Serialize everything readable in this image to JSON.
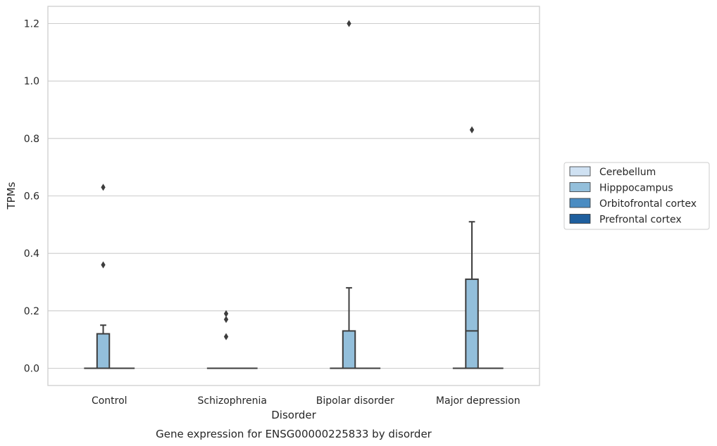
{
  "chart_data": {
    "type": "box",
    "title": "Gene expression for ENSG00000225833 by disorder",
    "xlabel": "Disorder",
    "ylabel": "TPMs",
    "ylim": [
      -0.06,
      1.26
    ],
    "yticks": [
      0.0,
      0.2,
      0.4,
      0.6,
      0.8,
      1.0,
      1.2
    ],
    "ytick_labels": [
      "0.0",
      "0.2",
      "0.4",
      "0.6",
      "0.8",
      "1.0",
      "1.2"
    ],
    "grid": true,
    "legend_position": "right",
    "categories": [
      "Control",
      "Schizophrenia",
      "Bipolar disorder",
      "Major depression"
    ],
    "series": [
      {
        "name": "Cerebellum",
        "color": "#cfe1f2",
        "boxes": [
          {
            "q1": 0,
            "median": 0,
            "q3": 0,
            "whisker_low": 0,
            "whisker_high": 0,
            "outliers": []
          },
          {
            "q1": 0,
            "median": 0,
            "q3": 0,
            "whisker_low": 0,
            "whisker_high": 0,
            "outliers": []
          },
          {
            "q1": 0,
            "median": 0,
            "q3": 0,
            "whisker_low": 0,
            "whisker_high": 0,
            "outliers": []
          },
          {
            "q1": 0,
            "median": 0,
            "q3": 0,
            "whisker_low": 0,
            "whisker_high": 0,
            "outliers": []
          }
        ]
      },
      {
        "name": "Hipppocampus",
        "color": "#93bfdb",
        "boxes": [
          {
            "q1": 0,
            "median": 0,
            "q3": 0.12,
            "whisker_low": 0,
            "whisker_high": 0.15,
            "outliers": [
              0.36,
              0.63
            ]
          },
          {
            "q1": 0,
            "median": 0,
            "q3": 0,
            "whisker_low": 0,
            "whisker_high": 0,
            "outliers": [
              0.11,
              0.17,
              0.19
            ]
          },
          {
            "q1": 0,
            "median": 0,
            "q3": 0.13,
            "whisker_low": 0,
            "whisker_high": 0.28,
            "outliers": [
              1.2
            ]
          },
          {
            "q1": 0,
            "median": 0.13,
            "q3": 0.31,
            "whisker_low": 0,
            "whisker_high": 0.51,
            "outliers": [
              0.83
            ]
          }
        ]
      },
      {
        "name": "Orbitofrontal cortex",
        "color": "#4a8cc2",
        "boxes": [
          {
            "q1": 0,
            "median": 0,
            "q3": 0,
            "whisker_low": 0,
            "whisker_high": 0,
            "outliers": []
          },
          {
            "q1": 0,
            "median": 0,
            "q3": 0,
            "whisker_low": 0,
            "whisker_high": 0,
            "outliers": []
          },
          {
            "q1": 0,
            "median": 0,
            "q3": 0,
            "whisker_low": 0,
            "whisker_high": 0,
            "outliers": []
          },
          {
            "q1": 0,
            "median": 0,
            "q3": 0,
            "whisker_low": 0,
            "whisker_high": 0,
            "outliers": []
          }
        ]
      },
      {
        "name": "Prefrontal cortex",
        "color": "#1f5f9e",
        "boxes": [
          {
            "q1": 0,
            "median": 0,
            "q3": 0,
            "whisker_low": 0,
            "whisker_high": 0,
            "outliers": []
          },
          {
            "q1": 0,
            "median": 0,
            "q3": 0,
            "whisker_low": 0,
            "whisker_high": 0,
            "outliers": []
          },
          {
            "q1": 0,
            "median": 0,
            "q3": 0,
            "whisker_low": 0,
            "whisker_high": 0,
            "outliers": []
          },
          {
            "q1": 0,
            "median": 0,
            "q3": 0,
            "whisker_low": 0,
            "whisker_high": 0,
            "outliers": []
          }
        ]
      }
    ]
  }
}
